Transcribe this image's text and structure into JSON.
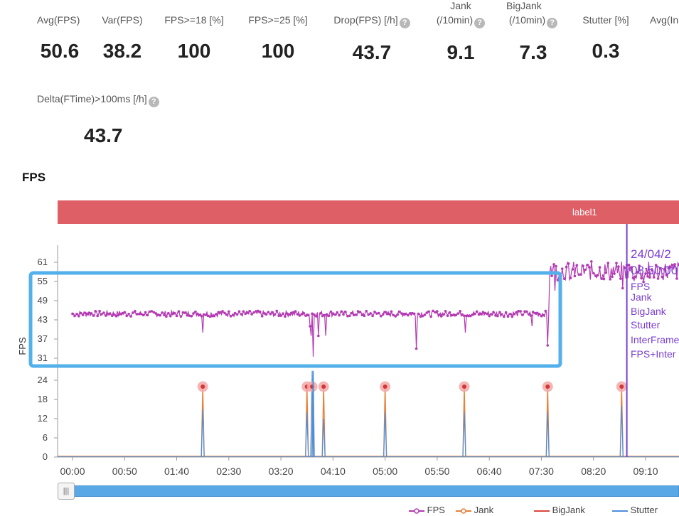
{
  "metrics": [
    {
      "label": "Avg(FPS)",
      "value": "50.6",
      "help": false
    },
    {
      "label": "Var(FPS)",
      "value": "38.2",
      "help": false
    },
    {
      "label": "FPS>=18 [%]",
      "value": "100",
      "help": false
    },
    {
      "label": "FPS>=25 [%]",
      "value": "100",
      "help": false
    },
    {
      "label": "Drop(FPS) [/h]",
      "value": "43.7",
      "help": true
    },
    {
      "label": "Jank\n(/10min)",
      "value": "9.1",
      "help": true
    },
    {
      "label": "BigJank\n(/10min)",
      "value": "7.3",
      "help": true
    },
    {
      "label": "Stutter [%]",
      "value": "0.3",
      "help": false
    },
    {
      "label": "Avg(In",
      "value": "",
      "help": false
    },
    {
      "label": "Delta(FTime)>100ms [/h]",
      "value": "43.7",
      "help": true
    }
  ],
  "help_icon": "?",
  "section_title": "FPS",
  "label_band": "label1",
  "slider_handle": "|||",
  "chart_data": {
    "type": "line",
    "ylabel": "FPS",
    "xlabel": "",
    "y_ticks": [
      0,
      6,
      12,
      18,
      24,
      31,
      37,
      43,
      49,
      55,
      61
    ],
    "x_tick_labels": [
      "00:00",
      "00:50",
      "01:40",
      "02:30",
      "03:20",
      "04:10",
      "05:00",
      "05:50",
      "06:40",
      "07:30",
      "08:20",
      "09:10"
    ],
    "x_tick_seconds": [
      0,
      50,
      100,
      150,
      200,
      250,
      300,
      350,
      400,
      450,
      500,
      550
    ],
    "xlim_seconds": [
      0,
      590
    ],
    "fps_series": {
      "name": "FPS",
      "color": "#b33ab3",
      "baseline": 45,
      "baseline_until_s": 457,
      "high_from_s": 458,
      "high_level": 58,
      "dips": [
        {
          "t": 125,
          "v": 39
        },
        {
          "t": 228,
          "v": 41
        },
        {
          "t": 229,
          "v": 38
        },
        {
          "t": 231,
          "v": 31.5
        },
        {
          "t": 236,
          "v": 38
        },
        {
          "t": 243,
          "v": 38
        },
        {
          "t": 330,
          "v": 34
        },
        {
          "t": 377,
          "v": 39
        },
        {
          "t": 441,
          "v": 41
        },
        {
          "t": 456,
          "v": 35
        }
      ]
    },
    "event_spikes": [
      {
        "t": 125,
        "jank": 22,
        "stutter": 15
      },
      {
        "t": 225,
        "jank": 22,
        "stutter": 14
      },
      {
        "t": 230,
        "jank": 22,
        "stutter": 22
      },
      {
        "t": 241,
        "jank": 22,
        "stutter": 12
      },
      {
        "t": 300,
        "jank": 22,
        "stutter": 14
      },
      {
        "t": 376,
        "jank": 22,
        "stutter": 14
      },
      {
        "t": 456,
        "jank": 22,
        "stutter": 14
      },
      {
        "t": 527,
        "jank": 22,
        "stutter": 16
      }
    ],
    "stutter_peak": {
      "t": 231,
      "v": 27
    },
    "cursor_t": 532,
    "tooltip": {
      "lines": [
        "24/04/2",
        "08:50:00",
        "FPS",
        "Jank",
        "BigJank",
        "Stutter",
        "InterFrame",
        "FPS+Inter"
      ],
      "color": "#7a3fd1"
    },
    "highlight_box_color": "#52b0ea",
    "legend": [
      {
        "name": "FPS",
        "color": "#b33ab3"
      },
      {
        "name": "Jank",
        "color": "#e8803a"
      },
      {
        "name": "BigJank",
        "color": "#d9463c"
      },
      {
        "name": "Stutter",
        "color": "#4d8fdc"
      }
    ]
  }
}
